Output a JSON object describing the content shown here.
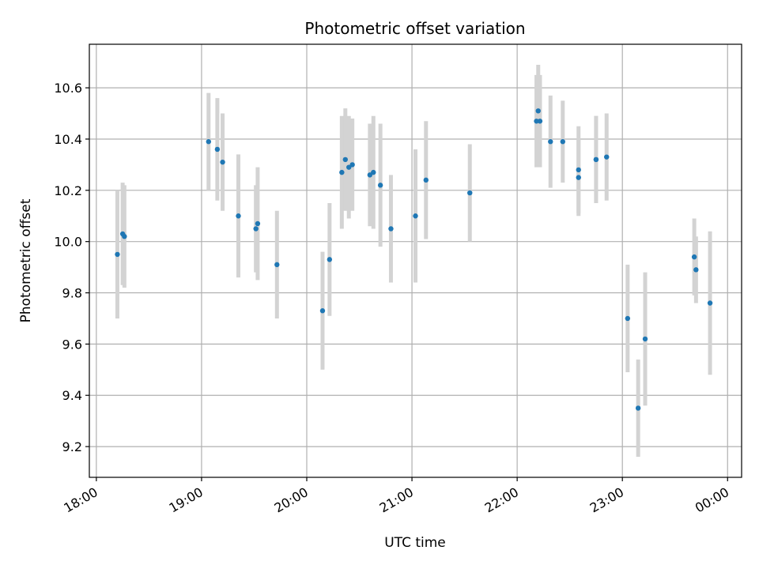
{
  "chart_data": {
    "type": "scatter",
    "title": "Photometric offset variation",
    "xlabel": "UTC time",
    "ylabel": "Photometric offset",
    "x_axis_type": "time",
    "xlim": [
      "17:56",
      "24:08"
    ],
    "ylim": [
      9.08,
      10.77
    ],
    "x_ticks": [
      {
        "value": "18:00",
        "label": "18:00"
      },
      {
        "value": "19:00",
        "label": "19:00"
      },
      {
        "value": "20:00",
        "label": "20:00"
      },
      {
        "value": "21:00",
        "label": "21:00"
      },
      {
        "value": "22:00",
        "label": "22:00"
      },
      {
        "value": "23:00",
        "label": "23:00"
      },
      {
        "value": "24:00",
        "label": "00:00"
      }
    ],
    "y_ticks": [
      9.2,
      9.4,
      9.6,
      9.8,
      10.0,
      10.2,
      10.4,
      10.6
    ],
    "grid": true,
    "colors": {
      "marker": "#1f77b4",
      "errorbar": "#d3d3d3"
    },
    "points": [
      {
        "time": "18:12",
        "y": 9.95,
        "err": 0.25
      },
      {
        "time": "18:15",
        "y": 10.03,
        "err": 0.2
      },
      {
        "time": "18:16",
        "y": 10.02,
        "err": 0.2
      },
      {
        "time": "19:04",
        "y": 10.39,
        "err": 0.19
      },
      {
        "time": "19:09",
        "y": 10.36,
        "err": 0.2
      },
      {
        "time": "19:12",
        "y": 10.31,
        "err": 0.19
      },
      {
        "time": "19:21",
        "y": 10.1,
        "err": 0.24
      },
      {
        "time": "19:31",
        "y": 10.05,
        "err": 0.17
      },
      {
        "time": "19:32",
        "y": 10.07,
        "err": 0.22
      },
      {
        "time": "19:43",
        "y": 9.91,
        "err": 0.21
      },
      {
        "time": "20:09",
        "y": 9.73,
        "err": 0.23
      },
      {
        "time": "20:13",
        "y": 9.93,
        "err": 0.22
      },
      {
        "time": "20:20",
        "y": 10.27,
        "err": 0.22
      },
      {
        "time": "20:22",
        "y": 10.32,
        "err": 0.2
      },
      {
        "time": "20:24",
        "y": 10.29,
        "err": 0.2
      },
      {
        "time": "20:26",
        "y": 10.3,
        "err": 0.18
      },
      {
        "time": "20:36",
        "y": 10.26,
        "err": 0.2
      },
      {
        "time": "20:38",
        "y": 10.27,
        "err": 0.22
      },
      {
        "time": "20:42",
        "y": 10.22,
        "err": 0.24
      },
      {
        "time": "20:48",
        "y": 10.05,
        "err": 0.21
      },
      {
        "time": "21:02",
        "y": 10.1,
        "err": 0.26
      },
      {
        "time": "21:08",
        "y": 10.24,
        "err": 0.23
      },
      {
        "time": "21:33",
        "y": 10.19,
        "err": 0.19
      },
      {
        "time": "22:11",
        "y": 10.47,
        "err": 0.18
      },
      {
        "time": "22:12",
        "y": 10.51,
        "err": 0.18
      },
      {
        "time": "22:13",
        "y": 10.47,
        "err": 0.18
      },
      {
        "time": "22:19",
        "y": 10.39,
        "err": 0.18
      },
      {
        "time": "22:26",
        "y": 10.39,
        "err": 0.16
      },
      {
        "time": "22:35",
        "y": 10.28,
        "err": 0.17
      },
      {
        "time": "22:35",
        "y": 10.25,
        "err": 0.15
      },
      {
        "time": "22:45",
        "y": 10.32,
        "err": 0.17
      },
      {
        "time": "22:45",
        "y": 10.32,
        "err": 0.17
      },
      {
        "time": "22:51",
        "y": 10.33,
        "err": 0.17
      },
      {
        "time": "23:03",
        "y": 9.7,
        "err": 0.21
      },
      {
        "time": "23:09",
        "y": 9.35,
        "err": 0.19
      },
      {
        "time": "23:13",
        "y": 9.62,
        "err": 0.26
      },
      {
        "time": "23:41",
        "y": 9.94,
        "err": 0.15
      },
      {
        "time": "23:42",
        "y": 9.89,
        "err": 0.13
      },
      {
        "time": "23:50",
        "y": 9.76,
        "err": 0.28
      }
    ]
  }
}
